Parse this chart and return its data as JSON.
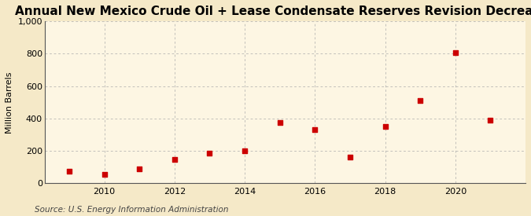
{
  "title": "Annual New Mexico Crude Oil + Lease Condensate Reserves Revision Decreases",
  "ylabel": "Million Barrels",
  "source": "Source: U.S. Energy Information Administration",
  "years": [
    2009,
    2010,
    2011,
    2012,
    2013,
    2014,
    2015,
    2016,
    2017,
    2018,
    2019,
    2020,
    2021
  ],
  "values": [
    75,
    55,
    90,
    145,
    185,
    200,
    375,
    330,
    162,
    350,
    510,
    805,
    390
  ],
  "marker_color": "#cc0000",
  "marker": "s",
  "marker_size": 4,
  "figure_bg_color": "#f5e9c8",
  "plot_bg_color": "#fdf6e3",
  "grid_color": "#aaaaaa",
  "ylim": [
    0,
    1000
  ],
  "yticks": [
    0,
    200,
    400,
    600,
    800,
    1000
  ],
  "xlim": [
    2008.3,
    2022.0
  ],
  "xticks": [
    2010,
    2012,
    2014,
    2016,
    2018,
    2020
  ],
  "title_fontsize": 11,
  "ylabel_fontsize": 8,
  "source_fontsize": 7.5,
  "tick_fontsize": 8
}
